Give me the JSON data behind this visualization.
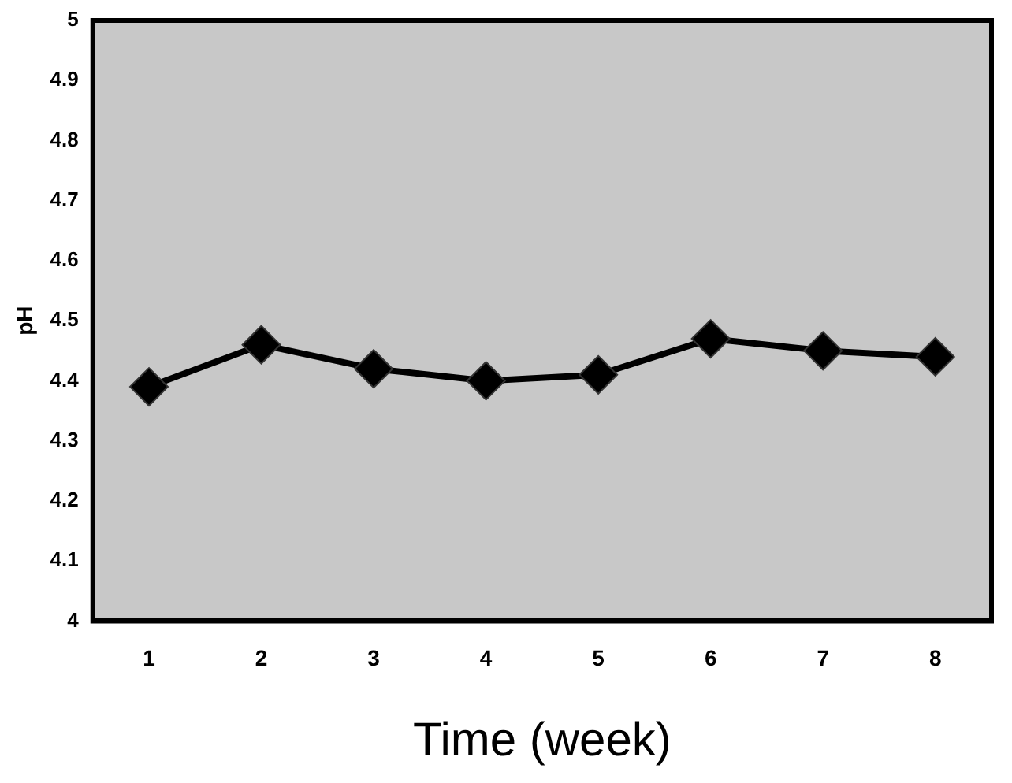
{
  "chart_data": {
    "type": "line",
    "xlabel": "Time (week)",
    "ylabel": "pH",
    "categories": [
      "1",
      "2",
      "3",
      "4",
      "5",
      "6",
      "7",
      "8"
    ],
    "series": [
      {
        "color": "#000000",
        "values": [
          4.39,
          4.46,
          4.42,
          4.4,
          4.41,
          4.47,
          4.45,
          4.44
        ]
      }
    ],
    "ylim": [
      4,
      5
    ],
    "yticks": [
      4,
      4.1,
      4.2,
      4.3,
      4.4,
      4.5,
      4.6,
      4.7,
      4.8,
      4.9,
      5
    ],
    "grid": false,
    "legend": false,
    "marker": "diamond",
    "line_style": "solid"
  }
}
